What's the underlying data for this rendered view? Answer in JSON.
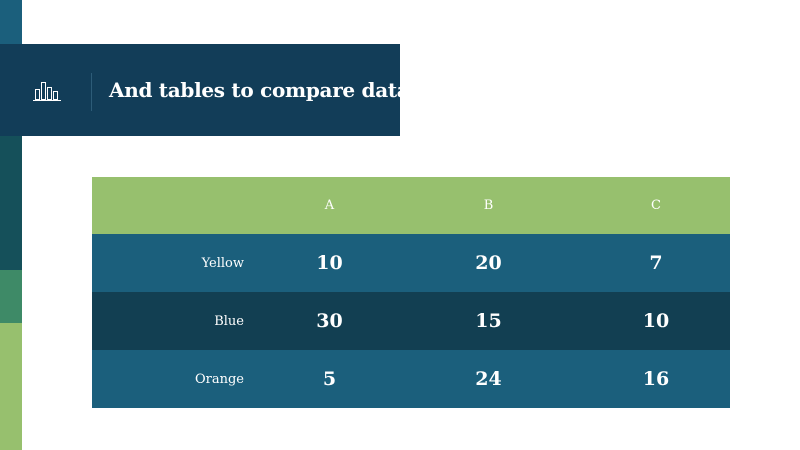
{
  "slide": {
    "title": "And tables to compare data",
    "icon": "bar-chart-icon"
  },
  "table": {
    "columns": [
      "",
      "A",
      "B",
      "C"
    ],
    "rows": [
      {
        "label": "Yellow",
        "values": [
          "10",
          "20",
          "7"
        ]
      },
      {
        "label": "Blue",
        "values": [
          "30",
          "15",
          "10"
        ]
      },
      {
        "label": "Orange",
        "values": [
          "5",
          "24",
          "16"
        ]
      }
    ]
  },
  "colors": {
    "navy": "#123d58",
    "teal": "#1b5f7c",
    "dark_teal": "#123f52",
    "green": "#97c06e",
    "mid_green": "#3e8a67"
  }
}
